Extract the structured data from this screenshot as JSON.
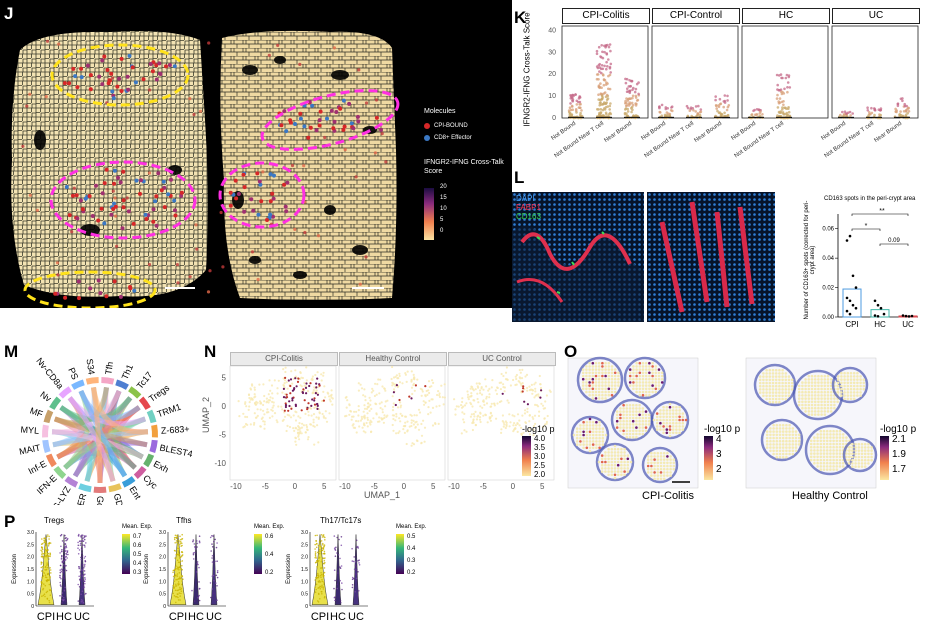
{
  "panels": {
    "J": {
      "label": "J",
      "legend_molecules_title": "Molecules",
      "legend_items": [
        {
          "label": "CPI-BOUND",
          "color": "#d62728"
        },
        {
          "label": "CD8+ Effector",
          "color": "#3b78c4"
        }
      ],
      "score_title": "IFNGR2-IFNG Cross-Talk Score",
      "score_ticks": [
        "20",
        "15",
        "10",
        "5",
        "0"
      ]
    },
    "K": {
      "label": "K",
      "ylabel": "IFNGR2-IFNG Cross-Talk Score",
      "yticks": [
        "0",
        "10",
        "20",
        "30",
        "40"
      ],
      "facets": [
        "CPI-Colitis",
        "CPI-Control",
        "HC",
        "UC"
      ],
      "xcats": [
        "Not Bound",
        "Not Bound Near T cell",
        "Near Bound"
      ]
    },
    "L": {
      "label": "L",
      "stains": [
        {
          "label": "DAPI",
          "color": "#4aa3ff"
        },
        {
          "label": "FABP1",
          "color": "#ff3b5c"
        },
        {
          "label": "CD163",
          "color": "#39d353"
        }
      ],
      "chart_title": "CD163 spots in the peri-crypt area",
      "ylabel": "Number of CD163+ spots (corrected for peri-crypt area)",
      "yticks": [
        "0.00",
        "0.02",
        "0.04",
        "0.06"
      ],
      "groups": [
        "CPI",
        "HC",
        "UC"
      ],
      "sig": [
        "**",
        "*",
        "0.09"
      ]
    },
    "M": {
      "label": "M",
      "sectors": [
        "Tfh",
        "Th1",
        "Tc17",
        "Tregs",
        "TRM1",
        "Z-683+",
        "BLEST4",
        "Exh",
        "Cyc",
        "Ent",
        "GD",
        "Gob",
        "G-ER",
        "G-LYZ",
        "IFN-E",
        "Inf-E",
        "MAIT",
        "MYL",
        "MF",
        "Nv",
        "Nv-CD8a",
        "PS",
        "S34"
      ]
    },
    "N": {
      "label": "N",
      "facets": [
        "CPI-Colitis",
        "Healthy Control",
        "UC Control"
      ],
      "xlabel": "UMAP_1",
      "ylabel": "UMAP_2",
      "xticks": [
        "-10",
        "-5",
        "0",
        "5"
      ],
      "yticks": [
        "5",
        "0",
        "-5",
        "-10"
      ],
      "legend_title": "-log10 p",
      "legend_ticks": [
        "4.0",
        "3.5",
        "3.0",
        "2.5",
        "2.0"
      ]
    },
    "O": {
      "label": "O",
      "captions": [
        "CPI-Colitis",
        "Healthy Control"
      ],
      "legend_title": "-log10 p",
      "legend1_ticks": [
        "4",
        "3",
        "2"
      ],
      "legend2_ticks": [
        "2.1",
        "1.9",
        "1.7"
      ]
    },
    "P": {
      "label": "P",
      "plots": [
        {
          "title": "Tregs",
          "legend_title": "Mean. Exp.",
          "ticks": [
            "0.7",
            "0.6",
            "0.5",
            "0.4",
            "0.3"
          ]
        },
        {
          "title": "Tfhs",
          "legend_title": "Mean. Exp.",
          "ticks": [
            "0.6",
            "0.4",
            "0.2"
          ]
        },
        {
          "title": "Th17/Tc17s",
          "legend_title": "Mean. Exp.",
          "ticks": [
            "0.5",
            "0.4",
            "0.3",
            "0.2"
          ]
        }
      ],
      "ylabel": "Expression",
      "yticks": [
        "0",
        "0.5",
        "1.0",
        "1.5",
        "2.0",
        "2.5",
        "3.0"
      ],
      "groups": [
        "CPI",
        "HC",
        "UC"
      ]
    }
  }
}
